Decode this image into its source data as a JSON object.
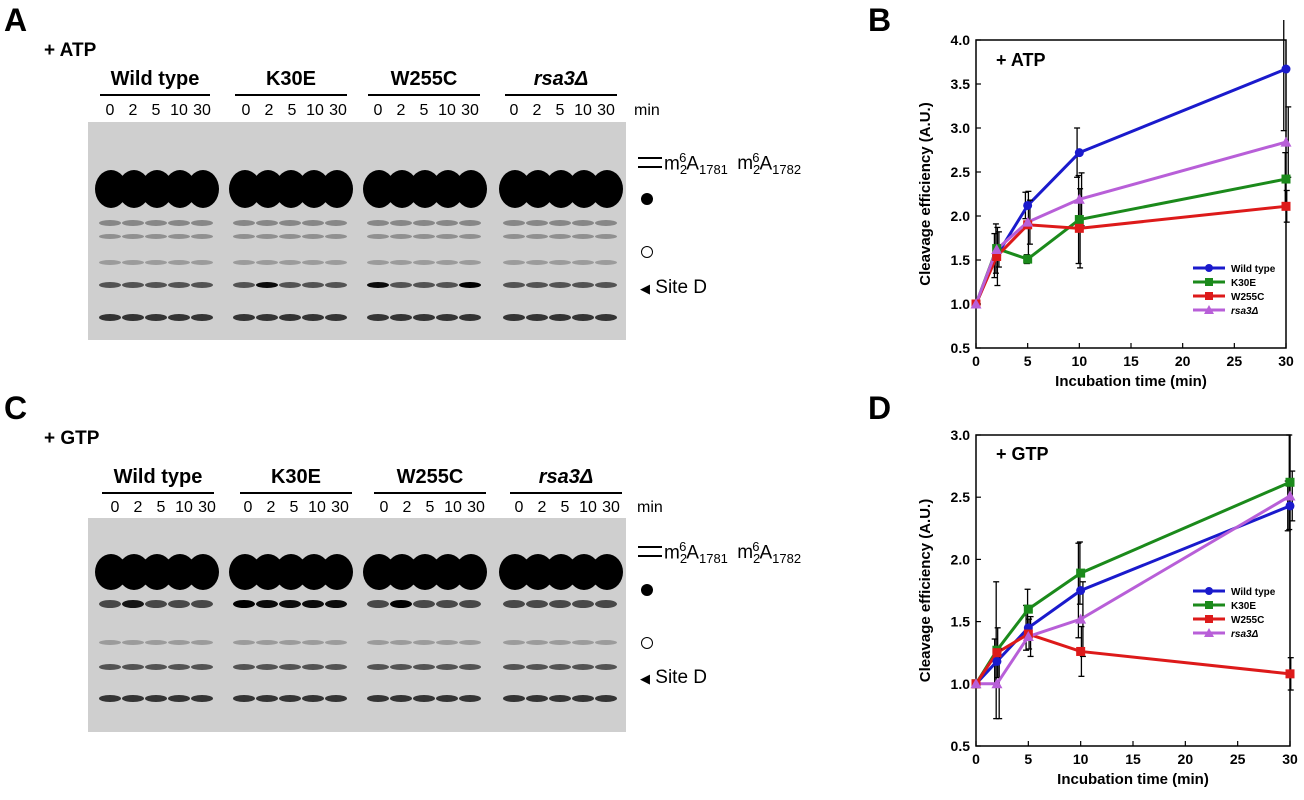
{
  "figure": {
    "panels": [
      {
        "letter": "A",
        "condition": "+ ATP",
        "time_unit": "min",
        "timepoints": [
          "0",
          "2",
          "5",
          "10",
          "30"
        ],
        "groups": [
          {
            "name": "Wild type",
            "italic": false
          },
          {
            "name": "K30E",
            "italic": false
          },
          {
            "name": "W255C",
            "italic": false
          },
          {
            "name": "rsa3Δ",
            "italic": true
          }
        ],
        "markers": {
          "methyl_label": {
            "m1": "m",
            "s1": "2",
            "sup1": "6",
            "b1": "A",
            "n1": "1781",
            "m2": "m",
            "s2": "2",
            "sup2": "6",
            "b2": "A",
            "n2": "1782"
          },
          "site_d": "Site D"
        }
      },
      {
        "letter": "C",
        "condition": "+ GTP",
        "time_unit": "min",
        "timepoints": [
          "0",
          "2",
          "5",
          "10",
          "30"
        ],
        "groups": [
          {
            "name": "Wild type",
            "italic": false
          },
          {
            "name": "K30E",
            "italic": false
          },
          {
            "name": "W255C",
            "italic": false
          },
          {
            "name": "rsa3Δ",
            "italic": true
          }
        ],
        "markers": {
          "methyl_label": {
            "m1": "m",
            "s1": "2",
            "sup1": "6",
            "b1": "A",
            "n1": "1781",
            "m2": "m",
            "s2": "2",
            "sup2": "6",
            "b2": "A",
            "n2": "1782"
          },
          "site_d": "Site D"
        }
      }
    ]
  },
  "chart_data": [
    {
      "letter": "B",
      "type": "line",
      "title": "",
      "annotation": "+ ATP",
      "xlabel": "Incubation time (min)",
      "ylabel": "Cleavage efficiency (A.U.)",
      "xlim": [
        0,
        30
      ],
      "ylim": [
        0.5,
        4.0
      ],
      "xticks": [
        0,
        5,
        10,
        15,
        20,
        25,
        30
      ],
      "yticks": [
        0.5,
        1.0,
        1.5,
        2.0,
        2.5,
        3.0,
        3.5,
        4.0
      ],
      "x": [
        0,
        2,
        5,
        10,
        30
      ],
      "legend_position": "bottom-right",
      "series": [
        {
          "name": "Wild type",
          "color": "#1a1acc",
          "marker": "circle",
          "values": [
            1.0,
            1.55,
            2.12,
            2.72,
            3.67
          ],
          "errors": [
            0,
            0.25,
            0.15,
            0.28,
            0.7
          ]
        },
        {
          "name": "K30E",
          "color": "#1b8a1b",
          "marker": "square",
          "values": [
            1.0,
            1.63,
            1.51,
            1.96,
            2.42
          ],
          "errors": [
            0,
            0.28,
            0.05,
            0.5,
            0.3
          ]
        },
        {
          "name": "W255C",
          "color": "#dd1a1a",
          "marker": "square",
          "values": [
            1.0,
            1.54,
            1.9,
            1.86,
            2.11
          ],
          "errors": [
            0,
            0.33,
            0.38,
            0.45,
            0.18
          ]
        },
        {
          "name": "rsa3Δ",
          "italic": true,
          "color": "#b85fd8",
          "marker": "triangle",
          "values": [
            1.0,
            1.62,
            1.93,
            2.19,
            2.84
          ],
          "errors": [
            0,
            0.2,
            0.25,
            0.3,
            0.4
          ]
        }
      ]
    },
    {
      "letter": "D",
      "type": "line",
      "title": "",
      "annotation": "+ GTP",
      "xlabel": "Incubation time (min)",
      "ylabel": "Cleavage efficiency (A.U.)",
      "xlim": [
        0,
        30
      ],
      "ylim": [
        0.5,
        3.0
      ],
      "xticks": [
        0,
        5,
        10,
        15,
        20,
        25,
        30
      ],
      "yticks": [
        0.5,
        1.0,
        1.5,
        2.0,
        2.5,
        3.0
      ],
      "x": [
        0,
        2,
        5,
        10,
        30
      ],
      "legend_position": "right",
      "series": [
        {
          "name": "Wild type",
          "color": "#1a1acc",
          "marker": "circle",
          "values": [
            1.0,
            1.18,
            1.45,
            1.75,
            2.43
          ],
          "errors": [
            0,
            0.18,
            0.18,
            0.38,
            0.2
          ]
        },
        {
          "name": "K30E",
          "color": "#1b8a1b",
          "marker": "square",
          "values": [
            1.0,
            1.27,
            1.6,
            1.89,
            2.62
          ],
          "errors": [
            0,
            0.55,
            0.16,
            0.25,
            0.38
          ]
        },
        {
          "name": "W255C",
          "color": "#dd1a1a",
          "marker": "square",
          "values": [
            1.0,
            1.25,
            1.4,
            1.26,
            1.08
          ],
          "errors": [
            0,
            0.2,
            0.12,
            0.2,
            0.13
          ]
        },
        {
          "name": "rsa3Δ",
          "italic": true,
          "color": "#b85fd8",
          "marker": "triangle",
          "values": [
            1.0,
            1.0,
            1.38,
            1.52,
            2.51
          ],
          "errors": [
            0,
            0.28,
            0.16,
            0.3,
            0.2
          ]
        }
      ]
    }
  ]
}
